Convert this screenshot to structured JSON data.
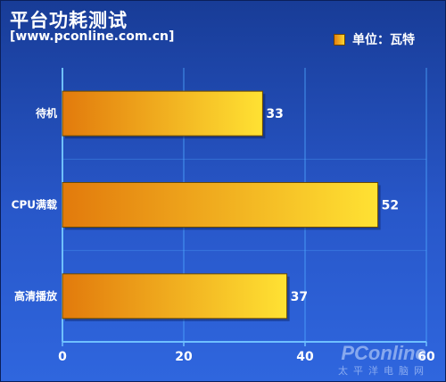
{
  "header": {
    "title": "平台功耗测试",
    "subtitle": "[www.pconline.com.cn]",
    "legend_label": "单位：瓦特"
  },
  "watermark": {
    "logo": "PConline",
    "sub": "太平洋电脑网"
  },
  "colors": {
    "bar_start": "#e27a0c",
    "bar_end": "#ffe233",
    "grid": "#4fa8ff",
    "background": "#2350bd"
  },
  "chart_data": {
    "type": "bar",
    "orientation": "horizontal",
    "title": "平台功耗测试",
    "categories": [
      "待机",
      "CPU满载",
      "高清播放"
    ],
    "series": [
      {
        "name": "单位：瓦特",
        "values": [
          33,
          52,
          37
        ]
      }
    ],
    "xlim": [
      0,
      60
    ],
    "xticks": [
      0,
      20,
      40,
      60
    ],
    "grid": true,
    "legend": "top-right"
  }
}
